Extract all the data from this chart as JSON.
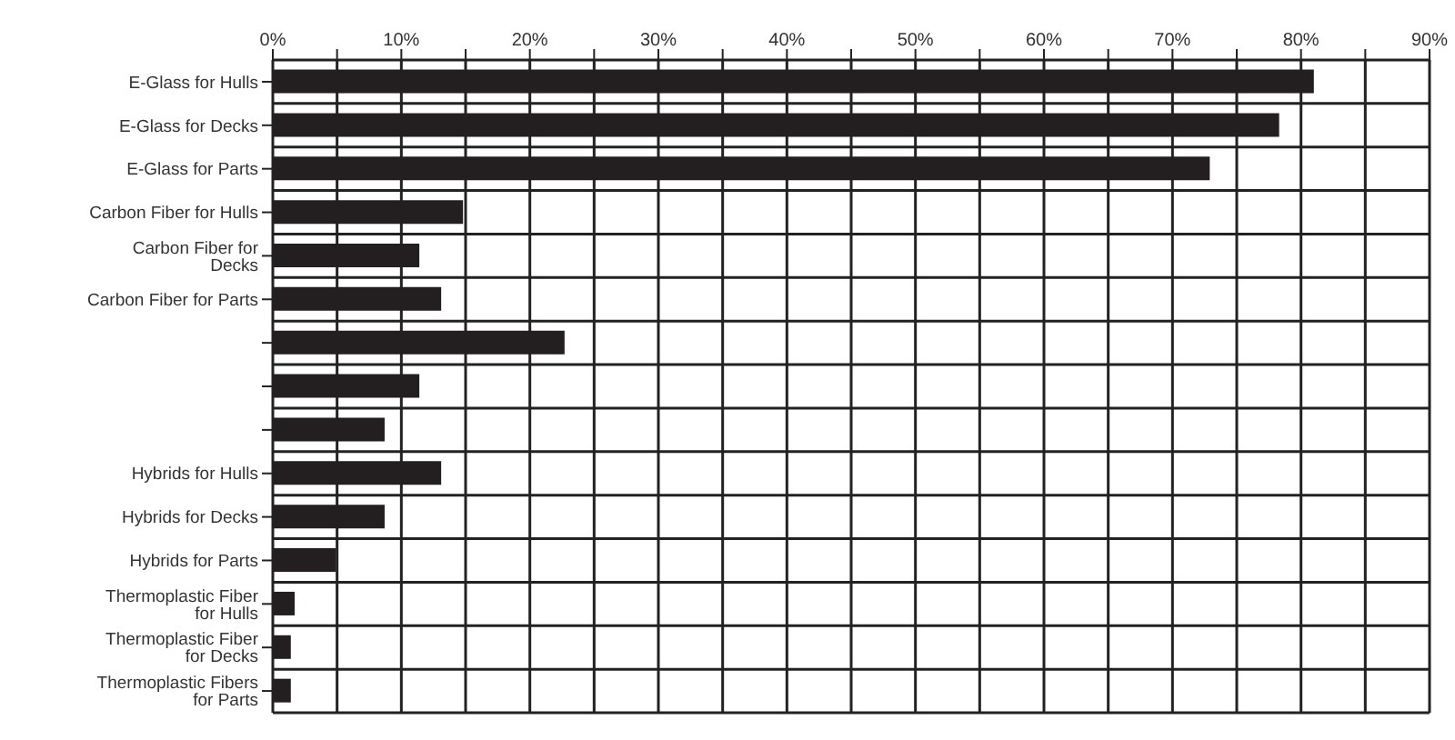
{
  "chart_data": {
    "type": "bar",
    "orientation": "horizontal",
    "categories": [
      "E-Glass for Hulls",
      "E-Glass for Decks",
      "E-Glass for Parts",
      "Carbon Fiber for Hulls",
      "Carbon Fiber for Decks",
      "Carbon Fiber for Parts",
      null,
      null,
      null,
      "Hybrids for Hulls",
      "Hybrids for Decks",
      "Hybrids for Parts",
      "Thermoplastic Fiber for Hulls",
      "Thermoplastic Fiber for Decks",
      "Thermoplastic Fibers for Parts"
    ],
    "values": [
      81,
      78.3,
      72.9,
      14.8,
      11.4,
      13.1,
      22.7,
      11.4,
      8.7,
      13.1,
      8.7,
      4.9,
      1.7,
      1.4,
      1.4
    ],
    "color": "#231f20",
    "xlim": [
      0,
      90
    ],
    "xticks": [
      {
        "value": 0,
        "label": "0%"
      },
      {
        "value": 5,
        "label": null
      },
      {
        "value": 10,
        "label": "10%"
      },
      {
        "value": 15,
        "label": null
      },
      {
        "value": 20,
        "label": "20%"
      },
      {
        "value": 25,
        "label": null
      },
      {
        "value": 30,
        "label": "30%"
      },
      {
        "value": 35,
        "label": null
      },
      {
        "value": 40,
        "label": "40%"
      },
      {
        "value": 45,
        "label": null
      },
      {
        "value": 50,
        "label": "50%"
      },
      {
        "value": 55,
        "label": null
      },
      {
        "value": 60,
        "label": "60%"
      },
      {
        "value": 65,
        "label": null
      },
      {
        "value": 70,
        "label": "70%"
      },
      {
        "value": 75,
        "label": null
      },
      {
        "value": 80,
        "label": "80%"
      },
      {
        "value": 85,
        "label": null
      },
      {
        "value": 90,
        "label": "90%"
      }
    ],
    "grid": true
  }
}
